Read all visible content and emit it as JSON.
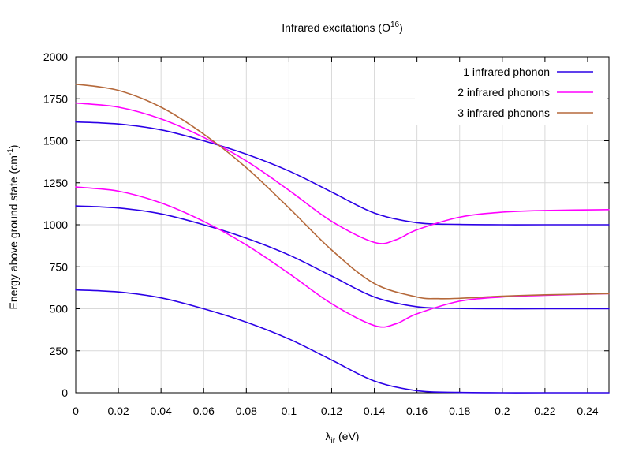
{
  "chart_data": {
    "type": "line",
    "title": "Infrared excitations (O16)",
    "title_parts": {
      "base": "Infrared excitations (O",
      "sup": "16",
      "tail": ")"
    },
    "xlabel": "λir (eV)",
    "xlabel_parts": {
      "base": "λ",
      "sub": "ir",
      "tail": " (eV)"
    },
    "ylabel": "Energy above ground state (cm-1)",
    "ylabel_parts": {
      "base": "Energy above ground state (cm",
      "sup": "-1",
      "tail": ")"
    },
    "xlim": [
      0,
      0.25
    ],
    "ylim": [
      0,
      2000
    ],
    "xticks": [
      0,
      0.02,
      0.04,
      0.06,
      0.08,
      0.1,
      0.12,
      0.14,
      0.16,
      0.18,
      0.2,
      0.22,
      0.24
    ],
    "xtick_labels": [
      "0",
      "0.02",
      "0.04",
      "0.06",
      "0.08",
      "0.1",
      "0.12",
      "0.14",
      "0.16",
      "0.18",
      "0.2",
      "0.22",
      "0.24"
    ],
    "yticks": [
      0,
      250,
      500,
      750,
      1000,
      1250,
      1500,
      1750,
      2000
    ],
    "ytick_labels": [
      "0",
      "250",
      "500",
      "750",
      "1000",
      "1250",
      "1500",
      "1750",
      "2000"
    ],
    "grid": true,
    "legend_position": "top-right",
    "series": [
      {
        "name": "1 infrared phonon",
        "color": "#2b00e6",
        "curves": [
          {
            "x": [
              0,
              0.02,
              0.04,
              0.06,
              0.08,
              0.1,
              0.12,
              0.14,
              0.16,
              0.18,
              0.2,
              0.22,
              0.25
            ],
            "y": [
              612,
              600,
              565,
              500,
              420,
              320,
              195,
              70,
              12,
              2,
              0,
              0,
              0
            ]
          },
          {
            "x": [
              0,
              0.02,
              0.04,
              0.06,
              0.08,
              0.1,
              0.12,
              0.14,
              0.16,
              0.18,
              0.2,
              0.22,
              0.25
            ],
            "y": [
              1112,
              1100,
              1065,
              1000,
              920,
              820,
              695,
              570,
              512,
              502,
              500,
              500,
              500
            ]
          },
          {
            "x": [
              0,
              0.02,
              0.04,
              0.06,
              0.08,
              0.1,
              0.12,
              0.14,
              0.16,
              0.18,
              0.2,
              0.22,
              0.25
            ],
            "y": [
              1612,
              1600,
              1565,
              1500,
              1420,
              1320,
              1195,
              1070,
              1012,
              1002,
              1000,
              1000,
              1000
            ]
          }
        ]
      },
      {
        "name": "2 infrared phonons",
        "color": "#ff00ff",
        "curves": [
          {
            "x": [
              0,
              0.02,
              0.04,
              0.06,
              0.08,
              0.1,
              0.12,
              0.14,
              0.15,
              0.16,
              0.18,
              0.2,
              0.22,
              0.25
            ],
            "y": [
              1225,
              1200,
              1130,
              1020,
              880,
              710,
              530,
              400,
              410,
              470,
              545,
              570,
              580,
              590
            ]
          },
          {
            "x": [
              0,
              0.02,
              0.04,
              0.06,
              0.08,
              0.1,
              0.12,
              0.14,
              0.15,
              0.16,
              0.18,
              0.2,
              0.22,
              0.25
            ],
            "y": [
              1725,
              1700,
              1630,
              1520,
              1380,
              1205,
              1020,
              895,
              910,
              970,
              1045,
              1075,
              1085,
              1090
            ]
          }
        ]
      },
      {
        "name": "3 infrared phonons",
        "color": "#b5693b",
        "curves": [
          {
            "x": [
              0,
              0.02,
              0.04,
              0.06,
              0.08,
              0.1,
              0.12,
              0.14,
              0.16,
              0.17,
              0.18,
              0.2,
              0.22,
              0.25
            ],
            "y": [
              1837,
              1800,
              1700,
              1540,
              1340,
              1100,
              850,
              650,
              570,
              560,
              562,
              575,
              583,
              590
            ]
          }
        ]
      }
    ]
  }
}
